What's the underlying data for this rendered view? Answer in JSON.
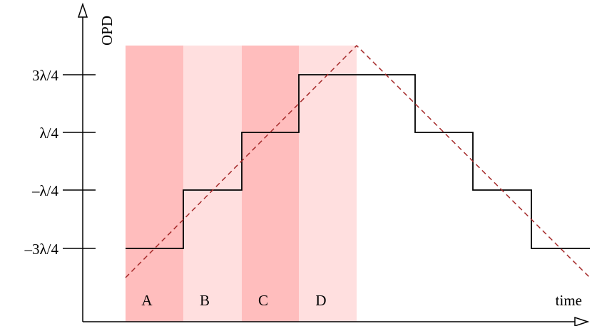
{
  "figure": {
    "y_axis_title": "OPD",
    "x_axis_title": "time",
    "y_ticks": [
      "3λ/4",
      "λ/4",
      "–λ/4",
      "–3λ/4"
    ],
    "bands": [
      {
        "label": "A",
        "color": "#ffbdbd"
      },
      {
        "label": "B",
        "color": "#ffdfdf"
      },
      {
        "label": "C",
        "color": "#ffbdbd"
      },
      {
        "label": "D",
        "color": "#ffdfdf"
      }
    ],
    "staircase_color": "#000000",
    "ramp_color": "#a52a2a"
  }
}
